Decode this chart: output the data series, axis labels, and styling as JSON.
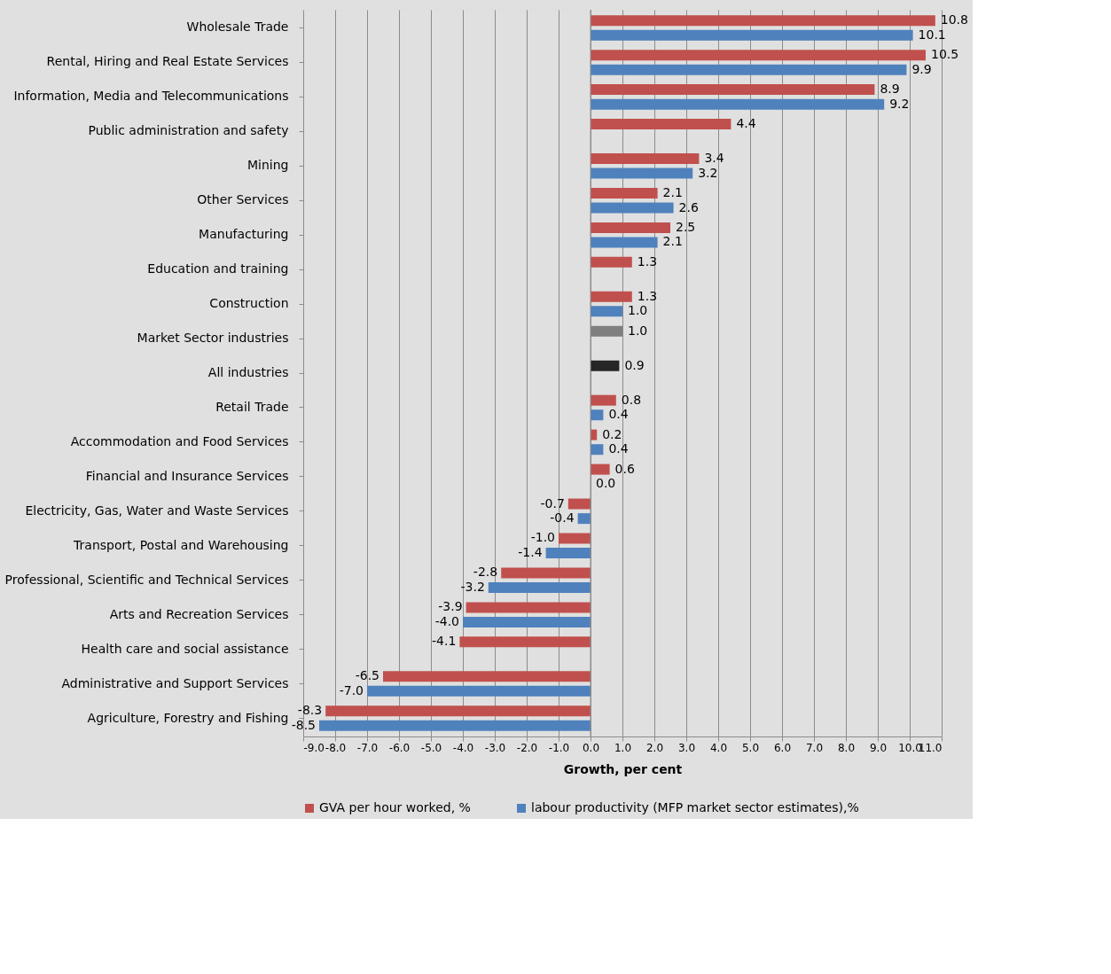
{
  "chart_data": {
    "type": "bar",
    "orientation": "horizontal",
    "xlabel": "Growth, per cent",
    "legend": "bottom",
    "grid": "x",
    "categories": [
      "Wholesale Trade",
      "Rental, Hiring and Real Estate Services",
      "Information, Media and Telecommunications",
      "Public administration and safety",
      "Mining",
      "Other Services",
      "Manufacturing",
      "Education and training",
      "Construction",
      "Market Sector industries",
      "All industries",
      "Retail Trade",
      "Accommodation and Food Services",
      "Financial and Insurance Services",
      "Electricity, Gas, Water and Waste Services",
      "Transport, Postal and Warehousing",
      "Professional, Scientific and Technical Services",
      "Arts and Recreation Services",
      "Health care and social assistance",
      "Administrative and Support Services",
      "Agriculture, Forestry and Fishing"
    ],
    "xlim": [
      -9,
      11
    ],
    "xticks": [
      {
        "value": -9,
        "label": "-9.0"
      },
      {
        "value": -8,
        "label": "-8.0"
      },
      {
        "value": -7,
        "label": "-7.0"
      },
      {
        "value": -6,
        "label": "-6.0"
      },
      {
        "value": -5,
        "label": "-5.0"
      },
      {
        "value": -4,
        "label": "-4.0"
      },
      {
        "value": -3,
        "label": "-3.0"
      },
      {
        "value": -2,
        "label": "-2.0"
      },
      {
        "value": -1,
        "label": "-1.0"
      },
      {
        "value": 0,
        "label": "0.0"
      },
      {
        "value": 1,
        "label": "1.0"
      },
      {
        "value": 2,
        "label": "2.0"
      },
      {
        "value": 3,
        "label": "3.0"
      },
      {
        "value": 4,
        "label": "4.0"
      },
      {
        "value": 5,
        "label": "5.0"
      },
      {
        "value": 6,
        "label": "6.0"
      },
      {
        "value": 7,
        "label": "7.0"
      },
      {
        "value": 8,
        "label": "8.0"
      },
      {
        "value": 9,
        "label": "9.0"
      },
      {
        "value": 10,
        "label": "10.0"
      },
      {
        "value": 11,
        "label": "11.0"
      }
    ],
    "series": [
      {
        "name": "GVA per hour worked, %",
        "color": "#c0504d",
        "colors": [
          "#c0504d",
          "#c0504d",
          "#c0504d",
          "#c0504d",
          "#c0504d",
          "#c0504d",
          "#c0504d",
          "#c0504d",
          "#c0504d",
          "#7f7f7f",
          "#262626",
          "#c0504d",
          "#c0504d",
          "#c0504d",
          "#c0504d",
          "#c0504d",
          "#c0504d",
          "#c0504d",
          "#c0504d",
          "#c0504d",
          "#c0504d"
        ],
        "values": [
          10.8,
          10.5,
          8.9,
          4.4,
          3.4,
          2.1,
          2.5,
          1.3,
          1.3,
          1.0,
          0.9,
          0.8,
          0.2,
          0.6,
          -0.7,
          -1.0,
          -2.8,
          -3.9,
          -4.1,
          -6.5,
          -8.3
        ],
        "value_labels": [
          "10.8",
          "10.5",
          "8.9",
          "4.4",
          "3.4",
          "2.1",
          "2.5",
          "1.3",
          "1.3",
          "1.0",
          "0.9",
          "0.8",
          "0.2",
          "0.6",
          "-0.7",
          "-1.0",
          "-2.8",
          "-3.9",
          "-4.1",
          "-6.5",
          "-8.3"
        ]
      },
      {
        "name": "labour productivity (MFP market sector estimates),%",
        "color": "#4f81bd",
        "values": [
          10.1,
          9.9,
          9.2,
          null,
          3.2,
          2.6,
          2.1,
          null,
          1.0,
          null,
          null,
          0.4,
          0.4,
          0.0,
          -0.4,
          -1.4,
          -3.2,
          -4.0,
          null,
          -7.0,
          -8.5
        ],
        "value_labels": [
          "10.1",
          "9.9",
          "9.2",
          null,
          "3.2",
          "2.6",
          "2.1",
          null,
          "1.0",
          null,
          null,
          "0.4",
          "0.4",
          "0.0",
          "-0.4",
          "-1.4",
          "-3.2",
          "-4.0",
          null,
          "-7.0",
          "-8.5"
        ]
      }
    ]
  }
}
